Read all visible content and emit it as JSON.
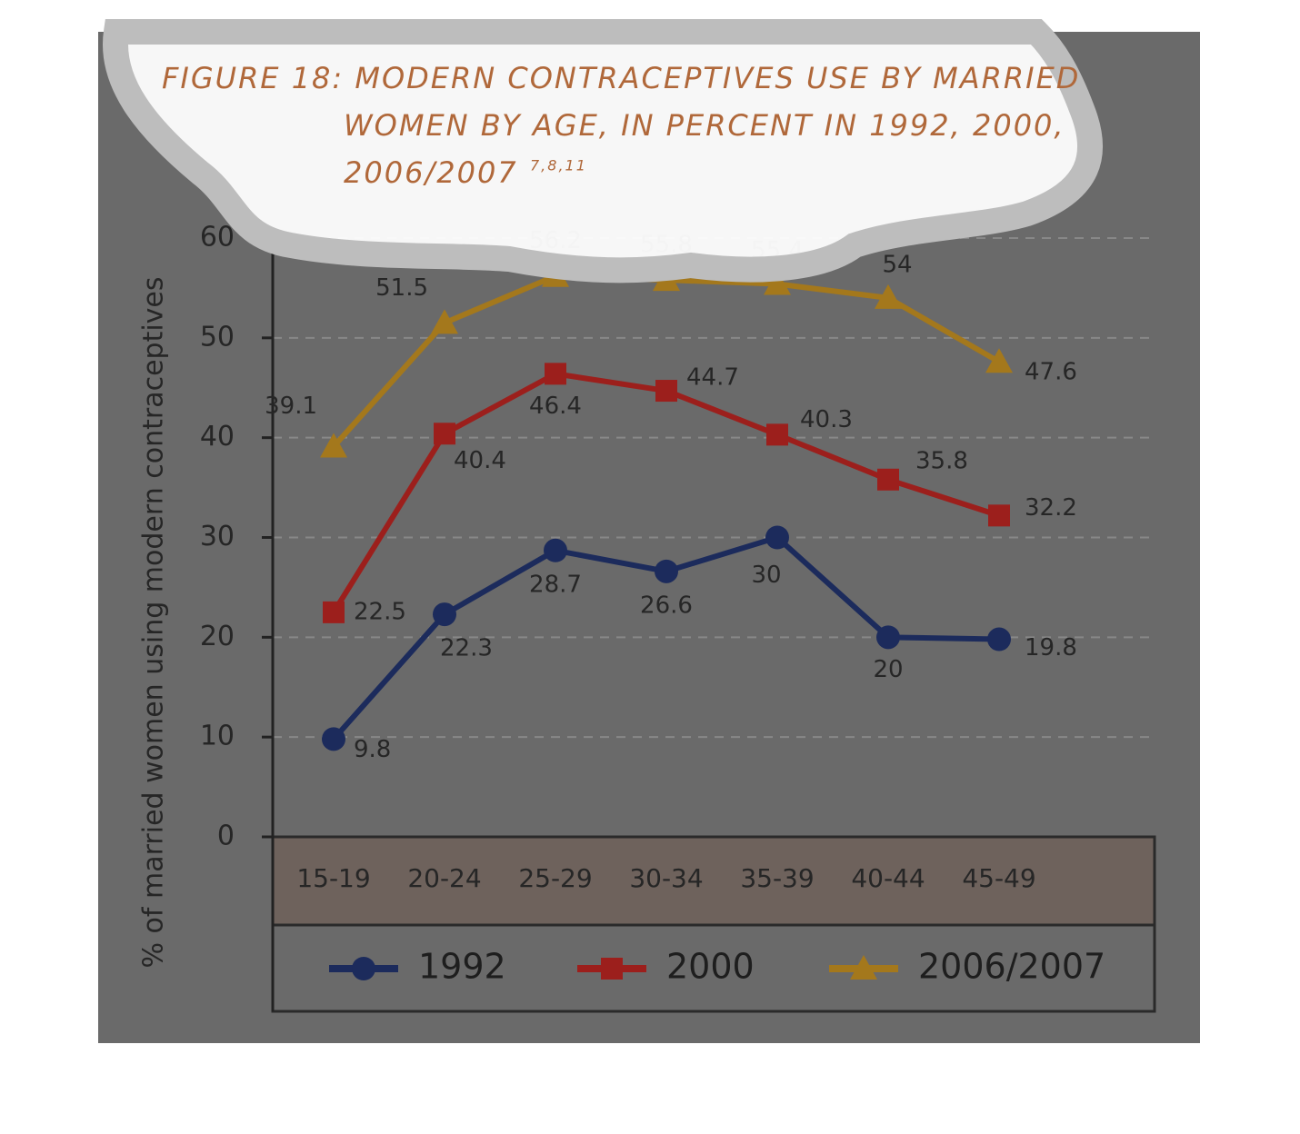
{
  "chart_data": {
    "type": "line",
    "title": [
      "FIGURE 18: MODERN CONTRACEPTIVES USE BY MARRIED",
      "WOMEN BY AGE, IN PERCENT IN 1992, 2000,",
      "2006/2007"
    ],
    "title_superscript": "7,8,11",
    "y_label": "% of married women using modern contraceptives",
    "categories": [
      "15-19",
      "20-24",
      "25-29",
      "30-34",
      "35-39",
      "40-44",
      "45-49"
    ],
    "series": [
      {
        "name": "1992",
        "color": "#1c2b5c",
        "marker": "circle",
        "values": [
          9.8,
          22.3,
          28.7,
          26.6,
          30,
          20,
          19.8
        ]
      },
      {
        "name": "2000",
        "color": "#9c1f1c",
        "marker": "square",
        "values": [
          22.5,
          40.4,
          46.4,
          44.7,
          40.3,
          35.8,
          32.2
        ]
      },
      {
        "name": "2006/2007",
        "color": "#a4781c",
        "marker": "triangle",
        "values": [
          39.1,
          51.5,
          56.2,
          55.8,
          55.4,
          54,
          47.6
        ]
      }
    ],
    "ylim": [
      0,
      60
    ],
    "yticks": [
      0,
      10,
      20,
      30,
      40,
      50,
      60
    ],
    "grid": true
  }
}
